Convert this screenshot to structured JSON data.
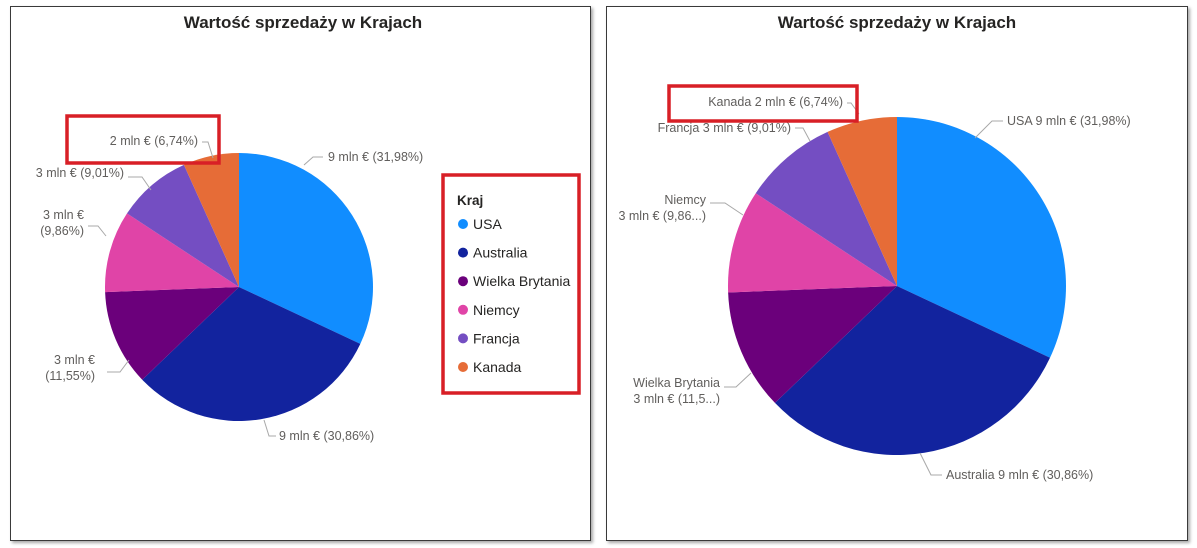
{
  "chart_data": [
    {
      "type": "pie",
      "title": "Wartość sprzedaży w Krajach",
      "legend": {
        "title": "Kraj",
        "position": "right"
      },
      "slices": [
        {
          "name": "USA",
          "value": 31.98,
          "label": "9 mln € (31,98%)",
          "color": "#118DFF"
        },
        {
          "name": "Australia",
          "value": 30.86,
          "label": "9 mln € (30,86%)",
          "color": "#12239E"
        },
        {
          "name": "Wielka Brytania",
          "value": 11.55,
          "label": [
            "3 mln €",
            "(11,55%)"
          ],
          "color": "#6B007B"
        },
        {
          "name": "Niemcy",
          "value": 9.86,
          "label": [
            "3 mln €",
            "(9,86%)"
          ],
          "color": "#E044A7"
        },
        {
          "name": "Francja",
          "value": 9.01,
          "label": "3 mln € (9,01%)",
          "color": "#744EC2"
        },
        {
          "name": "Kanada",
          "value": 6.74,
          "label": "2 mln € (6,74%)",
          "color": "#E66C37"
        }
      ]
    },
    {
      "type": "pie",
      "title": "Wartość sprzedaży w Krajach",
      "legend": null,
      "slices": [
        {
          "name": "USA",
          "value": 31.98,
          "label": "USA 9 mln € (31,98%)",
          "color": "#118DFF"
        },
        {
          "name": "Australia",
          "value": 30.86,
          "label": "Australia 9 mln € (30,86%)",
          "color": "#12239E"
        },
        {
          "name": "Wielka Brytania",
          "value": 11.55,
          "label": [
            "Wielka Brytania",
            "3 mln € (11,5...)"
          ],
          "color": "#6B007B"
        },
        {
          "name": "Niemcy",
          "value": 9.86,
          "label": [
            "Niemcy",
            "3 mln € (9,86...)"
          ],
          "color": "#E044A7"
        },
        {
          "name": "Francja",
          "value": 9.01,
          "label": "Francja 3 mln € (9,01%)",
          "color": "#744EC2"
        },
        {
          "name": "Kanada",
          "value": 6.74,
          "label": "Kanada 2 mln € (6,74%)",
          "color": "#E66C37"
        }
      ]
    }
  ]
}
